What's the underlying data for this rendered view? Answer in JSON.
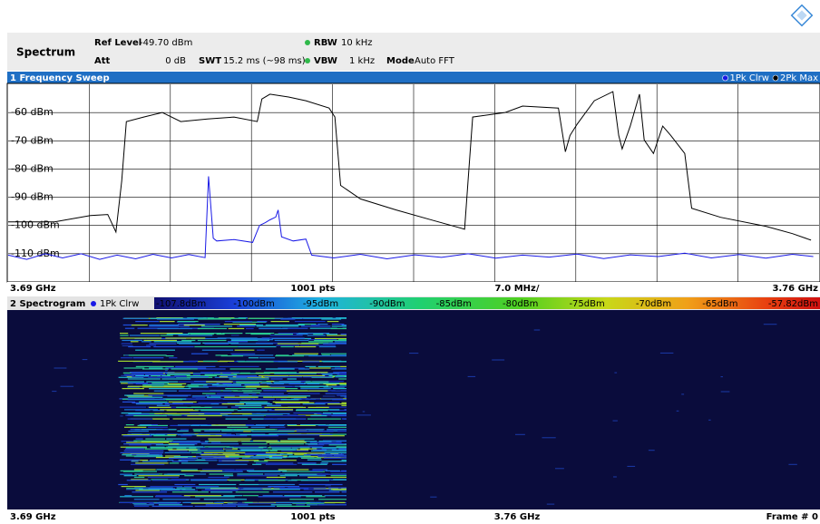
{
  "header": {
    "title": "Spectrum",
    "ref_level_label": "Ref Level",
    "ref_level": "-49.70 dBm",
    "att_label": "Att",
    "att": "0 dB",
    "swt_label": "SWT",
    "swt": "15.2 ms (~98 ms)",
    "rbw_label": "RBW",
    "rbw": "10 kHz",
    "vbw_label": "VBW",
    "vbw": "1 kHz",
    "mode_label": "Mode",
    "mode": "Auto FFT"
  },
  "chart_data": {
    "type": "line",
    "title": "1 Frequency Sweep",
    "xlim": [
      3.69,
      3.76
    ],
    "xticks": [
      {
        "value": 3.69,
        "label": "3.69 GHz"
      },
      {
        "value": 3.76,
        "label": "3.76 GHz"
      }
    ],
    "xgrid": [
      3.697,
      3.704,
      3.711,
      3.718,
      3.725,
      3.732,
      3.739,
      3.746,
      3.753
    ],
    "ylim": [
      -120,
      -50
    ],
    "yticks": [
      {
        "value": -60,
        "label": "-60 dBm"
      },
      {
        "value": -70,
        "label": "-70 dBm"
      },
      {
        "value": -80,
        "label": "-80 dBm"
      },
      {
        "value": -90,
        "label": "-90 dBm"
      },
      {
        "value": -100,
        "label": "-100 dBm"
      },
      {
        "value": -110,
        "label": "-110 dBm"
      }
    ],
    "grid": true,
    "points_label": "1001 pts",
    "division_label": "7.0 MHz/",
    "series": [
      {
        "name": "1Pk Clrw",
        "color": "#1a1ae6",
        "x": [
          3.69,
          3.6916,
          3.6932,
          3.6947,
          3.6963,
          3.6979,
          3.6994,
          3.701,
          3.7025,
          3.7041,
          3.7056,
          3.707,
          3.7073,
          3.7077,
          3.708,
          3.7095,
          3.7111,
          3.7117,
          3.7122,
          3.7126,
          3.7131,
          3.7133,
          3.7136,
          3.7146,
          3.7157,
          3.7162,
          3.7181,
          3.7204,
          3.7227,
          3.7251,
          3.7274,
          3.7297,
          3.7321,
          3.7344,
          3.7367,
          3.7391,
          3.7414,
          3.7437,
          3.7461,
          3.7484,
          3.7507,
          3.7531,
          3.7554,
          3.7577,
          3.7595
        ],
        "values": [
          -110.5,
          -112,
          -110,
          -111.5,
          -110,
          -112,
          -110.5,
          -111.8,
          -110.2,
          -111.5,
          -110.3,
          -111.4,
          -82.6,
          -104.5,
          -105.5,
          -105,
          -106,
          -100,
          -99,
          -98,
          -97,
          -94.5,
          -104,
          -105.5,
          -104.8,
          -110.5,
          -111.5,
          -110.2,
          -111.8,
          -110.4,
          -111.3,
          -110,
          -111.6,
          -110.5,
          -111.2,
          -110.1,
          -111.7,
          -110.4,
          -111,
          -109.8,
          -111.5,
          -110.3,
          -111.6,
          -110.2,
          -111
        ]
      },
      {
        "name": "2Pk Max",
        "color": "#000000",
        "x": [
          3.69,
          3.694,
          3.6971,
          3.6986,
          3.6993,
          3.6998,
          3.7002,
          3.7017,
          3.7033,
          3.7049,
          3.7072,
          3.7095,
          3.7115,
          3.7119,
          3.7126,
          3.7142,
          3.7157,
          3.7177,
          3.7182,
          3.7187,
          3.7204,
          3.7235,
          3.7266,
          3.7294,
          3.7297,
          3.7301,
          3.7329,
          3.7344,
          3.7375,
          3.7381,
          3.7385,
          3.7391,
          3.7406,
          3.7422,
          3.7427,
          3.743,
          3.7437,
          3.7445,
          3.7449,
          3.7457,
          3.7465,
          3.7472,
          3.7484,
          3.749,
          3.7515,
          3.7554,
          3.7577,
          3.7593
        ],
        "values": [
          -98.7,
          -98.7,
          -96.5,
          -96.1,
          -102.3,
          -84.2,
          -63.2,
          -61.6,
          -60,
          -63.2,
          -62.3,
          -61.6,
          -63.2,
          -55.2,
          -53.5,
          -54.5,
          -55.8,
          -58.4,
          -61.6,
          -85.8,
          -90.6,
          -94.5,
          -98.1,
          -101.3,
          -84.2,
          -61.6,
          -60,
          -57.7,
          -58.4,
          -73.9,
          -68.1,
          -64.2,
          -55.8,
          -52.6,
          -68.1,
          -72.9,
          -64.8,
          -53.5,
          -69.7,
          -74.5,
          -64.8,
          -68.1,
          -74.5,
          -93.9,
          -97.1,
          -100.3,
          -102.9,
          -105.2
        ]
      }
    ]
  },
  "spectrogram": {
    "title": "2 Spectrogram",
    "trace": "1Pk Clrw",
    "scale_labels": [
      "-107.8dBm",
      "-100dBm",
      "-95dBm",
      "-90dBm",
      "-85dBm",
      "-80dBm",
      "-75dBm",
      "-70dBm",
      "-65dBm",
      "-57.82dBm"
    ],
    "x_start": "3.69 GHz",
    "points": "1001 pts",
    "x_end": "3.76 GHz",
    "frame": "Frame # 0"
  }
}
